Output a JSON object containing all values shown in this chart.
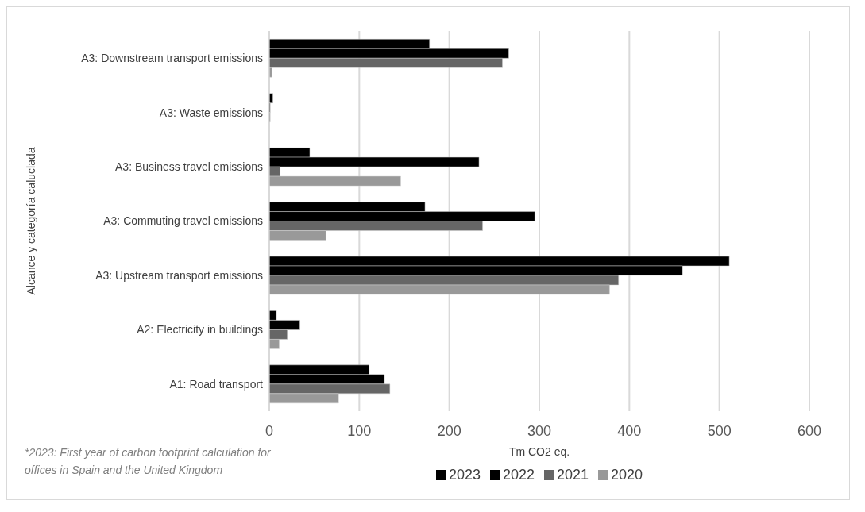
{
  "chart_data": {
    "type": "bar",
    "orientation": "horizontal",
    "xlabel": "Tm CO2 eq.",
    "ylabel": "Alcance y categoría caluclada",
    "categories": [
      "A3: Downstream transport emissions",
      "A3: Waste emissions",
      "A3: Business travel emissions",
      "A3: Commuting travel emissions",
      "A3: Upstream transport emissions",
      "A2: Electricity in buildings",
      "A1: Road transport"
    ],
    "series": [
      {
        "name": "2023",
        "color": "#000000",
        "values": [
          178,
          4,
          45,
          173,
          511,
          8,
          111
        ]
      },
      {
        "name": "2022",
        "color": "#000000",
        "values": [
          266,
          1,
          233,
          295,
          459,
          34,
          128
        ]
      },
      {
        "name": "2021",
        "color": "#666666",
        "values": [
          259,
          1,
          12,
          237,
          388,
          20,
          134
        ]
      },
      {
        "name": "2020",
        "color": "#999999",
        "values": [
          3,
          0,
          146,
          63,
          378,
          11,
          77
        ]
      }
    ],
    "xlim": [
      0,
      600
    ],
    "xticks": [
      0,
      100,
      200,
      300,
      400,
      500,
      600
    ],
    "grid": "x",
    "legend": "bottom",
    "annotations": [
      "*2023: First year of carbon footprint calculation for offices in Spain and the United Kingdom"
    ]
  }
}
